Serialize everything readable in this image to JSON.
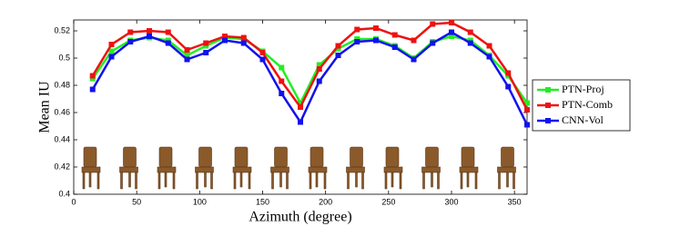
{
  "chart_data": {
    "type": "line",
    "x_label": "Azimuth (degree)",
    "y_label": "Mean IU",
    "x": [
      15,
      30,
      45,
      60,
      75,
      90,
      105,
      120,
      135,
      150,
      165,
      180,
      195,
      210,
      225,
      240,
      255,
      270,
      285,
      300,
      315,
      330,
      345,
      360
    ],
    "series": [
      {
        "name": "PTN-Proj",
        "color": "#22ee22",
        "values": [
          0.485,
          0.505,
          0.513,
          0.515,
          0.513,
          0.502,
          0.509,
          0.515,
          0.514,
          0.505,
          0.493,
          0.467,
          0.495,
          0.507,
          0.514,
          0.514,
          0.509,
          0.5,
          0.512,
          0.516,
          0.513,
          0.502,
          0.487,
          0.467
        ]
      },
      {
        "name": "PTN-Comb",
        "color": "#ee1111",
        "values": [
          0.487,
          0.51,
          0.519,
          0.52,
          0.519,
          0.506,
          0.511,
          0.516,
          0.515,
          0.504,
          0.483,
          0.464,
          0.492,
          0.509,
          0.521,
          0.522,
          0.517,
          0.513,
          0.525,
          0.526,
          0.519,
          0.509,
          0.489,
          0.462
        ]
      },
      {
        "name": "CNN-Vol",
        "color": "#1111ee",
        "values": [
          0.477,
          0.501,
          0.512,
          0.516,
          0.511,
          0.499,
          0.504,
          0.513,
          0.511,
          0.499,
          0.474,
          0.453,
          0.483,
          0.502,
          0.512,
          0.513,
          0.508,
          0.499,
          0.511,
          0.519,
          0.511,
          0.501,
          0.479,
          0.451
        ]
      }
    ],
    "xlim": [
      0,
      360
    ],
    "xticks": [
      0,
      50,
      100,
      150,
      200,
      250,
      300,
      350
    ],
    "ylim": [
      0.4,
      0.528
    ],
    "yticks": [
      0.4,
      0.42,
      0.44,
      0.46,
      0.48,
      0.5,
      0.52
    ],
    "legend": "outside-right"
  }
}
